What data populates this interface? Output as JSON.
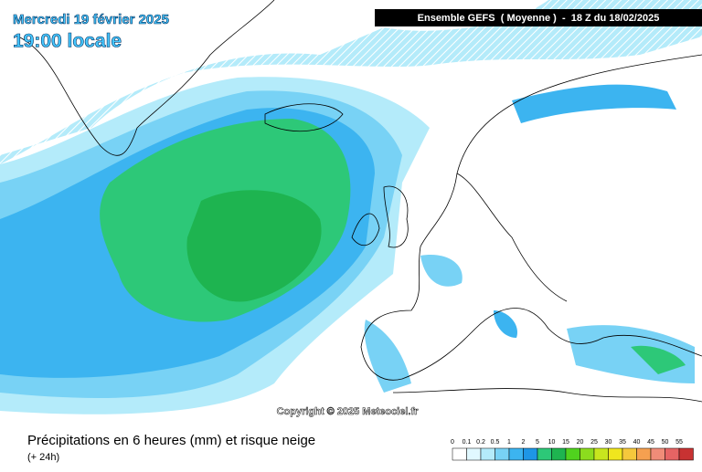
{
  "header": {
    "date": "Mercredi 19 février 2025",
    "time": "19:00 locale",
    "run": "Ensemble GEFS  ( Moyenne )  -  18 Z du 18/02/2025"
  },
  "copyright": "Copyright © 2025 Meteociel.fr",
  "footer": {
    "title": "Précipitations en 6 heures (mm) et risque neige",
    "lead": "(+ 24h)"
  },
  "legend": {
    "items": [
      {
        "value": 0,
        "color": "#ffffff"
      },
      {
        "value": 0.1,
        "color": "#e0f8ff"
      },
      {
        "value": 0.2,
        "color": "#b4ebfa"
      },
      {
        "value": 0.5,
        "color": "#78d2f5"
      },
      {
        "value": 1,
        "color": "#3cb4f0"
      },
      {
        "value": 2,
        "color": "#1e96e6"
      },
      {
        "value": 5,
        "color": "#2dc878"
      },
      {
        "value": 10,
        "color": "#1eb450"
      },
      {
        "value": 15,
        "color": "#50d21e"
      },
      {
        "value": 20,
        "color": "#8cdc1e"
      },
      {
        "value": 25,
        "color": "#c8e61e"
      },
      {
        "value": 30,
        "color": "#f0e61e"
      },
      {
        "value": 35,
        "color": "#f5c83c"
      },
      {
        "value": 40,
        "color": "#f5a050"
      },
      {
        "value": 45,
        "color": "#f08c78"
      },
      {
        "value": 50,
        "color": "#e66464"
      },
      {
        "value": 55,
        "color": "#c83232"
      }
    ]
  }
}
